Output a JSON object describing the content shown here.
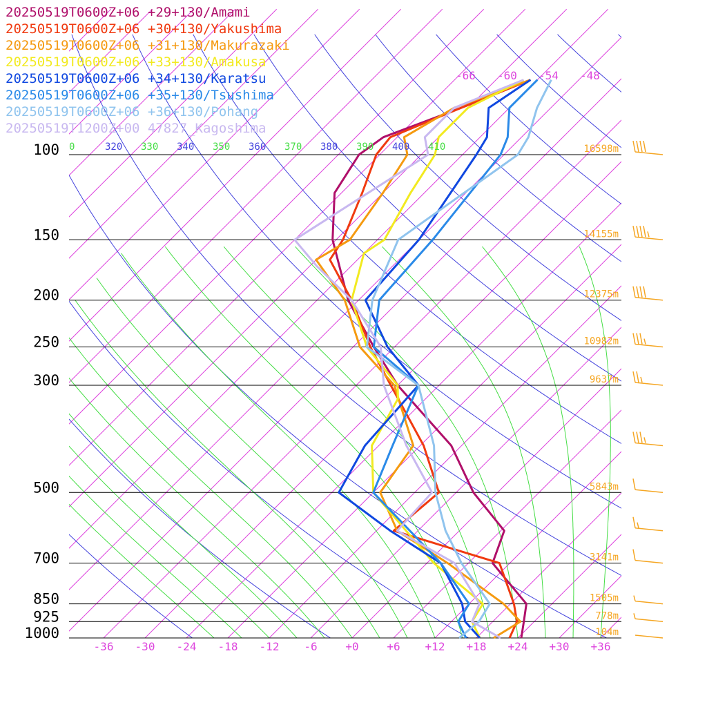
{
  "legend": [
    {
      "text": "20250519T0600Z+06 +29+130/Amami",
      "color": "#b0106a"
    },
    {
      "text": "20250519T0600Z+06 +30+130/Yakushima",
      "color": "#f03a10"
    },
    {
      "text": "20250519T0600Z+06 +31+130/Makurazaki",
      "color": "#f59a10"
    },
    {
      "text": "20250519T0600Z+06 +33+130/Amakusa",
      "color": "#f2ea20"
    },
    {
      "text": "20250519T0600Z+06 +34+130/Karatsu",
      "color": "#1048e0"
    },
    {
      "text": "20250519T0600Z+06 +35+130/Tsushima",
      "color": "#2a8ae8"
    },
    {
      "text": "20250519T0600Z+06 +36+130/Pohang",
      "color": "#90c4ee"
    },
    {
      "text": "20250519T1200Z+00 47827_Kagoshima",
      "color": "#c8b8f0"
    }
  ],
  "chart_data": {
    "type": "line",
    "diagram": "skew-T log-p",
    "pressure_levels": [
      {
        "p": 100,
        "label": "100",
        "height": "16598m"
      },
      {
        "p": 150,
        "label": "150",
        "height": "14155m"
      },
      {
        "p": 200,
        "label": "200",
        "height": "12375m"
      },
      {
        "p": 250,
        "label": "250",
        "height": "10982m"
      },
      {
        "p": 300,
        "label": "300",
        "height": "9637m"
      },
      {
        "p": 500,
        "label": "500",
        "height": "5843m"
      },
      {
        "p": 700,
        "label": "700",
        "height": "3141m"
      },
      {
        "p": 850,
        "label": "850",
        "height": "1505m"
      },
      {
        "p": 925,
        "label": "925",
        "height": "778m"
      },
      {
        "p": 1000,
        "label": "1000",
        "height": "104m"
      }
    ],
    "temperature_ticks": [
      "-36",
      "-30",
      "-24",
      "-18",
      "-12",
      "-6",
      "+0",
      "+6",
      "+12",
      "+18",
      "+24",
      "+30",
      "+36"
    ],
    "theta_labels": [
      {
        "text": "0",
        "color": "#44dd44"
      },
      {
        "text": "320",
        "color": "#4444dd"
      },
      {
        "text": "330",
        "color": "#44dd44"
      },
      {
        "text": "340",
        "color": "#4444dd"
      },
      {
        "text": "350",
        "color": "#44dd44"
      },
      {
        "text": "360",
        "color": "#4444dd"
      },
      {
        "text": "370",
        "color": "#44dd44"
      },
      {
        "text": "380",
        "color": "#4444dd"
      },
      {
        "text": "390",
        "color": "#44dd44"
      },
      {
        "text": "400",
        "color": "#4444dd"
      },
      {
        "text": "410",
        "color": "#44dd44"
      }
    ],
    "upper_temp_labels": [
      "-66",
      "-60",
      "-54",
      "-48"
    ],
    "series": [
      {
        "name": "20250519T0600Z+06 +29+130/Amami",
        "color": "#b0106a",
        "temp": [
          [
            1000,
            24.5
          ],
          [
            925,
            22.5
          ],
          [
            850,
            20.3
          ],
          [
            700,
            9.5
          ],
          [
            600,
            6.5
          ],
          [
            500,
            -3.5
          ],
          [
            400,
            -13.5
          ],
          [
            300,
            -30
          ],
          [
            250,
            -39
          ],
          [
            200,
            -49.5
          ],
          [
            150,
            -60.5
          ],
          [
            120,
            -67
          ],
          [
            100,
            -69
          ],
          [
            92,
            -68
          ],
          [
            80,
            -61
          ],
          [
            70,
            -55
          ]
        ]
      },
      {
        "name": "20250519T0600Z+06 +30+130/Yakushima",
        "color": "#f03a10",
        "temp": [
          [
            1000,
            22.8
          ],
          [
            925,
            21.5
          ],
          [
            850,
            18.5
          ],
          [
            700,
            10.5
          ],
          [
            600,
            -9.5
          ],
          [
            500,
            -8.5
          ],
          [
            400,
            -17.5
          ],
          [
            300,
            -31
          ],
          [
            250,
            -39.5
          ],
          [
            200,
            -49
          ],
          [
            165,
            -58
          ],
          [
            150,
            -59
          ],
          [
            120,
            -63
          ],
          [
            100,
            -66.5
          ],
          [
            92,
            -67
          ],
          [
            80,
            -61
          ],
          [
            70,
            -55
          ]
        ]
      },
      {
        "name": "20250519T0600Z+06 +31+130/Makurazaki",
        "color": "#f59a10",
        "temp": [
          [
            1000,
            20.5
          ],
          [
            925,
            22
          ],
          [
            850,
            17
          ],
          [
            700,
            3
          ],
          [
            600,
            -9
          ],
          [
            500,
            -17
          ],
          [
            400,
            -19
          ],
          [
            300,
            -30.5
          ],
          [
            250,
            -41
          ],
          [
            200,
            -50
          ],
          [
            165,
            -60
          ],
          [
            150,
            -58
          ],
          [
            120,
            -60
          ],
          [
            100,
            -62
          ],
          [
            92,
            -65
          ],
          [
            80,
            -62
          ],
          [
            70,
            -55
          ]
        ]
      },
      {
        "name": "20250519T0600Z+06 +33+130/Amakusa",
        "color": "#f2ea20",
        "temp": [
          [
            1000,
            18.5
          ],
          [
            925,
            15
          ],
          [
            850,
            14
          ],
          [
            700,
            1
          ],
          [
            500,
            -18
          ],
          [
            400,
            -25
          ],
          [
            320,
            -28
          ],
          [
            300,
            -30
          ],
          [
            250,
            -40
          ],
          [
            200,
            -49
          ],
          [
            160,
            -54
          ],
          [
            150,
            -53
          ],
          [
            120,
            -56
          ],
          [
            100,
            -58
          ],
          [
            92,
            -60
          ],
          [
            80,
            -60
          ],
          [
            70,
            -56
          ]
        ]
      },
      {
        "name": "20250519T0600Z+06 +34+130/Karatsu",
        "color": "#1048e0",
        "temp": [
          [
            1000,
            18.5
          ],
          [
            925,
            14
          ],
          [
            850,
            11
          ],
          [
            700,
            2
          ],
          [
            600,
            -10
          ],
          [
            500,
            -23
          ],
          [
            400,
            -26
          ],
          [
            300,
            -27
          ],
          [
            250,
            -37
          ],
          [
            200,
            -47
          ],
          [
            150,
            -48
          ],
          [
            100,
            -52
          ],
          [
            92,
            -53
          ],
          [
            80,
            -57
          ],
          [
            70,
            -55
          ]
        ]
      },
      {
        "name": "20250519T0600Z+06 +35+130/Tsushima",
        "color": "#2a8ae8",
        "temp": [
          [
            1000,
            16.5
          ],
          [
            925,
            13
          ],
          [
            850,
            12
          ],
          [
            700,
            2
          ],
          [
            500,
            -18
          ],
          [
            400,
            -22
          ],
          [
            300,
            -27
          ],
          [
            250,
            -39
          ],
          [
            200,
            -45
          ],
          [
            150,
            -46
          ],
          [
            100,
            -48.5
          ],
          [
            92,
            -50
          ],
          [
            80,
            -54
          ],
          [
            70,
            -54
          ]
        ]
      },
      {
        "name": "20250519T0600Z+06 +36+130/Pohang",
        "color": "#90c4ee",
        "temp": [
          [
            1000,
            15.5
          ],
          [
            925,
            16
          ],
          [
            850,
            15
          ],
          [
            700,
            5
          ],
          [
            600,
            -2
          ],
          [
            500,
            -9
          ],
          [
            400,
            -16
          ],
          [
            300,
            -27
          ],
          [
            250,
            -40
          ],
          [
            200,
            -46
          ],
          [
            150,
            -51
          ],
          [
            100,
            -46
          ],
          [
            92,
            -47
          ],
          [
            80,
            -50
          ],
          [
            70,
            -52
          ]
        ]
      },
      {
        "name": "20250519T1200Z+00 47827_Kagoshima",
        "color": "#c8b8f0",
        "temp": [
          [
            1000,
            21.5
          ],
          [
            925,
            15
          ],
          [
            850,
            13.5
          ],
          [
            700,
            4
          ],
          [
            600,
            -9
          ],
          [
            500,
            -9.5
          ],
          [
            400,
            -20
          ],
          [
            300,
            -32
          ],
          [
            250,
            -38
          ],
          [
            200,
            -49
          ],
          [
            170,
            -59
          ],
          [
            150,
            -66
          ],
          [
            100,
            -59
          ],
          [
            92,
            -62
          ],
          [
            80,
            -62
          ],
          [
            70,
            -56
          ]
        ]
      }
    ],
    "wind_barbs": [
      {
        "p": 100,
        "speed": 40
      },
      {
        "p": 150,
        "speed": 45
      },
      {
        "p": 200,
        "speed": 40
      },
      {
        "p": 250,
        "speed": 35
      },
      {
        "p": 300,
        "speed": 25
      },
      {
        "p": 400,
        "speed": 35
      },
      {
        "p": 500,
        "speed": 10
      },
      {
        "p": 600,
        "speed": 15
      },
      {
        "p": 700,
        "speed": 10
      },
      {
        "p": 850,
        "speed": 5
      },
      {
        "p": 925,
        "speed": 5
      },
      {
        "p": 1000,
        "speed": 0
      }
    ],
    "colors": {
      "dry_adiabat": "#4444dd",
      "moist_adiabat": "#44dd44",
      "isotherm": "#dd44dd",
      "isobar": "#000000",
      "height": "#f5a623",
      "barb": "#f5a623"
    }
  }
}
